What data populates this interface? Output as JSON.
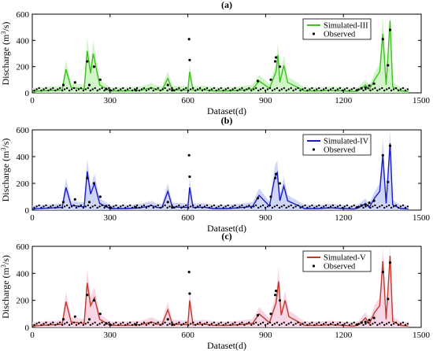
{
  "figure": {
    "background": "#ffffff",
    "observed_marker_color": "#000000"
  },
  "chart_data": [
    {
      "type": "line",
      "panel_label": "(a)",
      "xlabel": "Dataset(d)",
      "ylabel_main": "Discharge (m",
      "ylabel_sup": "3",
      "ylabel_tail": "/s)",
      "xlim": [
        0,
        1500
      ],
      "ylim": [
        0,
        600
      ],
      "xticks": [
        0,
        300,
        600,
        900,
        1200,
        1500
      ],
      "yticks": [
        0,
        200,
        400,
        600
      ],
      "xtick_labels": [
        "0",
        "300",
        "600",
        "900",
        "1200",
        "1500"
      ],
      "ytick_labels": [
        "0",
        "200",
        "400",
        "600"
      ],
      "legend_position": "top-right",
      "color": "#3cc21e",
      "band_color": "#c9f2bf",
      "series": [
        {
          "name": "Simulated-III",
          "style": "line",
          "x": [
            0,
            60,
            115,
            130,
            150,
            200,
            212,
            225,
            235,
            260,
            300,
            360,
            420,
            460,
            480,
            500,
            523,
            540,
            600,
            607,
            620,
            660,
            700,
            750,
            800,
            850,
            875,
            915,
            940,
            948,
            955,
            970,
            985,
            1050,
            1100,
            1150,
            1200,
            1240,
            1260,
            1285,
            1300,
            1320,
            1340,
            1352,
            1365,
            1380,
            1390,
            1420,
            1450
          ],
          "y": [
            10,
            18,
            22,
            180,
            40,
            30,
            320,
            150,
            300,
            60,
            15,
            15,
            20,
            40,
            25,
            20,
            110,
            25,
            20,
            160,
            20,
            25,
            15,
            15,
            20,
            30,
            90,
            35,
            160,
            290,
            80,
            210,
            80,
            15,
            15,
            20,
            15,
            10,
            20,
            60,
            25,
            100,
            160,
            450,
            60,
            550,
            45,
            15,
            10
          ]
        },
        {
          "name": "Observed",
          "style": "points",
          "x": [
            120,
            165,
            212,
            220,
            238,
            262,
            285,
            300,
            400,
            523,
            540,
            605,
            607,
            870,
            920,
            937,
            940,
            955,
            1252,
            1270,
            1285,
            1300,
            1318,
            1352,
            1372,
            1380
          ],
          "y": [
            60,
            80,
            240,
            60,
            200,
            100,
            30,
            20,
            20,
            60,
            20,
            410,
            250,
            90,
            100,
            240,
            270,
            200,
            20,
            35,
            40,
            55,
            70,
            410,
            210,
            480
          ]
        }
      ]
    },
    {
      "type": "line",
      "panel_label": "(b)",
      "xlabel": "Dataset(d)",
      "ylabel_main": "Discharge (m",
      "ylabel_sup": "3",
      "ylabel_tail": "/s)",
      "xlim": [
        0,
        1500
      ],
      "ylim": [
        0,
        600
      ],
      "xticks": [
        0,
        300,
        600,
        900,
        1200,
        1500
      ],
      "yticks": [
        0,
        200,
        400,
        600
      ],
      "xtick_labels": [
        "0",
        "300",
        "600",
        "900",
        "1200",
        "1500"
      ],
      "ytick_labels": [
        "0",
        "200",
        "400",
        "600"
      ],
      "legend_position": "top-right",
      "color": "#1a1ac4",
      "band_color": "#c8d0f4",
      "series": [
        {
          "name": "Simulated-IV",
          "style": "line",
          "x": [
            0,
            60,
            115,
            130,
            150,
            200,
            212,
            225,
            240,
            260,
            300,
            360,
            420,
            460,
            480,
            500,
            523,
            540,
            600,
            607,
            620,
            660,
            700,
            750,
            800,
            850,
            875,
            915,
            935,
            945,
            955,
            970,
            985,
            1050,
            1100,
            1150,
            1200,
            1240,
            1260,
            1285,
            1300,
            1320,
            1340,
            1352,
            1365,
            1380,
            1390,
            1420,
            1450
          ],
          "y": [
            8,
            15,
            20,
            170,
            35,
            25,
            290,
            120,
            200,
            50,
            12,
            12,
            18,
            35,
            20,
            18,
            140,
            25,
            20,
            170,
            20,
            22,
            12,
            12,
            18,
            28,
            110,
            30,
            240,
            280,
            70,
            180,
            70,
            12,
            12,
            18,
            12,
            8,
            18,
            50,
            20,
            90,
            140,
            410,
            50,
            500,
            40,
            12,
            8
          ]
        },
        {
          "name": "Observed",
          "style": "points",
          "x": [
            120,
            165,
            212,
            220,
            238,
            262,
            285,
            300,
            400,
            523,
            540,
            605,
            607,
            870,
            920,
            937,
            940,
            955,
            1252,
            1270,
            1285,
            1300,
            1318,
            1352,
            1372,
            1380
          ],
          "y": [
            60,
            80,
            240,
            60,
            200,
            100,
            30,
            20,
            20,
            60,
            20,
            410,
            250,
            90,
            100,
            240,
            270,
            200,
            20,
            35,
            40,
            55,
            70,
            410,
            210,
            480
          ]
        }
      ]
    },
    {
      "type": "line",
      "panel_label": "(c)",
      "xlabel": "Dataset(d)",
      "ylabel_main": "Discharge (m",
      "ylabel_sup": "3",
      "ylabel_tail": "/s)",
      "xlim": [
        0,
        1500
      ],
      "ylim": [
        0,
        600
      ],
      "xticks": [
        0,
        300,
        600,
        900,
        1200,
        1500
      ],
      "yticks": [
        0,
        200,
        400,
        600
      ],
      "xtick_labels": [
        "0",
        "300",
        "600",
        "900",
        "1200",
        "1500"
      ],
      "ytick_labels": [
        "0",
        "200",
        "400",
        "600"
      ],
      "legend_position": "top-right",
      "color": "#c0392b",
      "band_color": "#f7cfe0",
      "series": [
        {
          "name": "Simulated-V",
          "style": "line",
          "x": [
            0,
            60,
            115,
            130,
            150,
            200,
            212,
            225,
            240,
            260,
            300,
            360,
            420,
            460,
            480,
            500,
            523,
            540,
            600,
            607,
            620,
            660,
            700,
            750,
            800,
            850,
            875,
            915,
            940,
            950,
            960,
            975,
            990,
            1050,
            1100,
            1150,
            1200,
            1240,
            1260,
            1285,
            1300,
            1320,
            1340,
            1352,
            1365,
            1380,
            1390,
            1420,
            1450
          ],
          "y": [
            10,
            18,
            22,
            190,
            40,
            30,
            330,
            160,
            220,
            60,
            15,
            15,
            20,
            40,
            25,
            20,
            130,
            25,
            20,
            200,
            20,
            25,
            15,
            15,
            20,
            30,
            100,
            35,
            180,
            340,
            90,
            200,
            80,
            15,
            15,
            20,
            15,
            10,
            20,
            70,
            25,
            110,
            160,
            490,
            60,
            530,
            45,
            15,
            10
          ]
        },
        {
          "name": "Observed",
          "style": "points",
          "x": [
            120,
            165,
            212,
            220,
            238,
            262,
            285,
            300,
            400,
            523,
            540,
            605,
            607,
            870,
            920,
            937,
            940,
            955,
            1252,
            1270,
            1285,
            1300,
            1318,
            1352,
            1372,
            1380
          ],
          "y": [
            60,
            80,
            240,
            60,
            200,
            100,
            30,
            20,
            20,
            60,
            20,
            410,
            250,
            90,
            100,
            240,
            270,
            200,
            20,
            35,
            40,
            55,
            70,
            410,
            210,
            480
          ]
        }
      ]
    }
  ]
}
